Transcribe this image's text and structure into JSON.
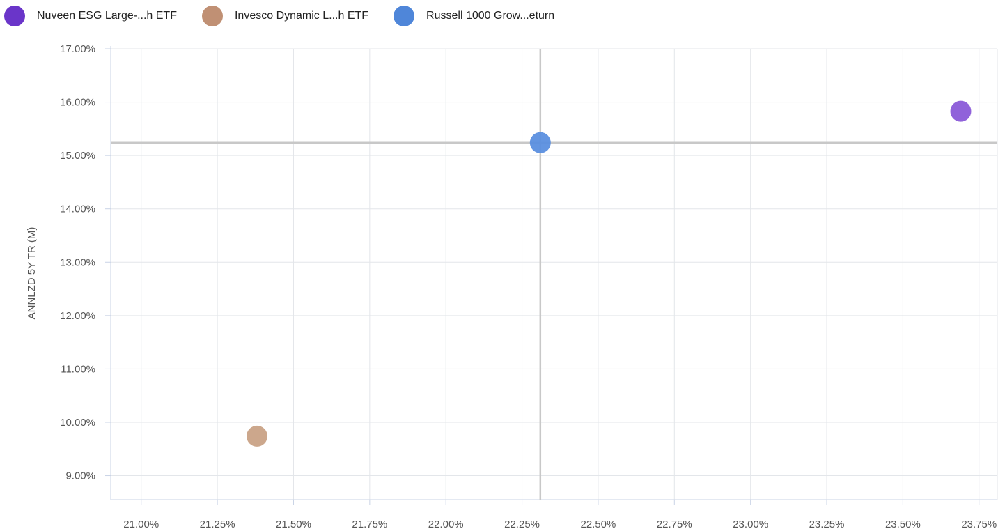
{
  "chart_data": {
    "type": "scatter",
    "title": "",
    "xlabel": "",
    "ylabel": "ANNLZD 5Y TR (M)",
    "xlim": [
      20.9,
      23.81
    ],
    "ylim": [
      8.55,
      17.0
    ],
    "x_ticks": [
      21.0,
      21.25,
      21.5,
      21.75,
      22.0,
      22.25,
      22.5,
      22.75,
      23.0,
      23.25,
      23.5,
      23.75
    ],
    "x_tick_labels": [
      "21.00%",
      "21.25%",
      "21.50%",
      "21.75%",
      "22.00%",
      "22.25%",
      "22.50%",
      "22.75%",
      "23.00%",
      "23.25%",
      "23.50%",
      "23.75%"
    ],
    "y_ticks": [
      9,
      10,
      11,
      12,
      13,
      14,
      15,
      16,
      17
    ],
    "y_tick_labels": [
      "9.00%",
      "10.00%",
      "11.00%",
      "12.00%",
      "13.00%",
      "14.00%",
      "15.00%",
      "16.00%",
      "17.00%"
    ],
    "grid": true,
    "legend_position": "top-left",
    "reference_lines": {
      "x": 22.31,
      "y": 15.24
    },
    "series": [
      {
        "name": "Nuveen ESG Large-...h ETF",
        "color": "#6a35c9",
        "point_color": "#8a5ad8",
        "x": [
          23.69
        ],
        "y": [
          15.83
        ]
      },
      {
        "name": "Invesco Dynamic L...h ETF",
        "color": "#c09074",
        "point_color": "#c9a286",
        "x": [
          21.38
        ],
        "y": [
          9.74
        ]
      },
      {
        "name": "Russell 1000 Grow...eturn",
        "color": "#4f86d9",
        "point_color": "#5b8fdf",
        "x": [
          22.31
        ],
        "y": [
          15.24
        ]
      }
    ]
  }
}
